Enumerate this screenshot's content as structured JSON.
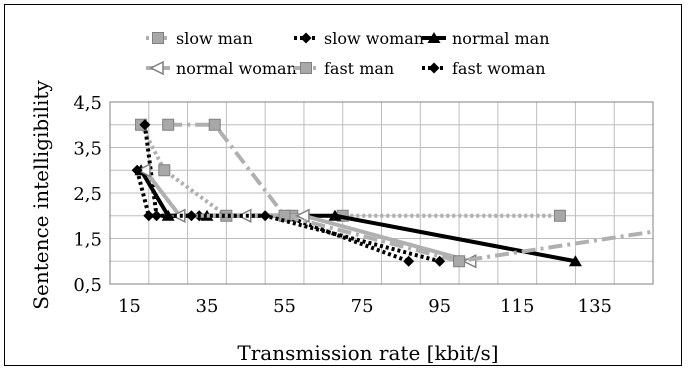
{
  "chart_data": {
    "type": "line",
    "title": "",
    "xlabel": "Transmission rate [kbit/s]",
    "ylabel": "Sentence intelligibility",
    "xlim": [
      10,
      150
    ],
    "ylim": [
      0.5,
      4.5
    ],
    "xticks": [
      15,
      35,
      55,
      75,
      95,
      115,
      135
    ],
    "yticks": [
      0.5,
      1.5,
      2.5,
      3.5,
      4.5
    ],
    "xtick_labels": [
      "15",
      "35",
      "55",
      "75",
      "95",
      "115",
      "135"
    ],
    "ytick_labels": [
      "0,5",
      "1,5",
      "2,5",
      "3,5",
      "4,5"
    ],
    "grid": true,
    "legend_position": "top",
    "series": [
      {
        "name": "slow man",
        "color": "#b0b0b0",
        "dash": "dotted",
        "marker": "square",
        "x": [
          18,
          24,
          40,
          57,
          70,
          126
        ],
        "y": [
          4.0,
          3.0,
          2.0,
          2.0,
          2.0,
          2.0
        ]
      },
      {
        "name": "slow woman",
        "color": "#000000",
        "dash": "dotted",
        "marker": "diamond",
        "x": [
          19,
          22,
          33,
          55,
          87
        ],
        "y": [
          4.0,
          2.0,
          2.0,
          2.0,
          1.0
        ]
      },
      {
        "name": "normal man",
        "color": "#000000",
        "dash": "solid",
        "marker": "triangle-up",
        "x": [
          18,
          25,
          35,
          68,
          130
        ],
        "y": [
          3.0,
          2.0,
          2.0,
          2.0,
          1.0
        ]
      },
      {
        "name": "normal woman",
        "color": "#b0b0b0",
        "dash": "solid",
        "marker": "triangle-left",
        "x": [
          19,
          28,
          45,
          60,
          103
        ],
        "y": [
          3.0,
          2.0,
          2.0,
          2.0,
          1.0
        ]
      },
      {
        "name": "fast man",
        "color": "#b0b0b0",
        "dash": "dashdot",
        "marker": "square",
        "x": [
          25,
          37,
          55,
          100,
          150
        ],
        "y": [
          4.0,
          4.0,
          2.0,
          1.0,
          1.65
        ]
      },
      {
        "name": "fast woman",
        "color": "#000000",
        "dash": "dotted",
        "marker": "diamond",
        "x": [
          17,
          20,
          31,
          50,
          95
        ],
        "y": [
          3.0,
          2.0,
          2.0,
          2.0,
          1.0
        ]
      }
    ]
  }
}
